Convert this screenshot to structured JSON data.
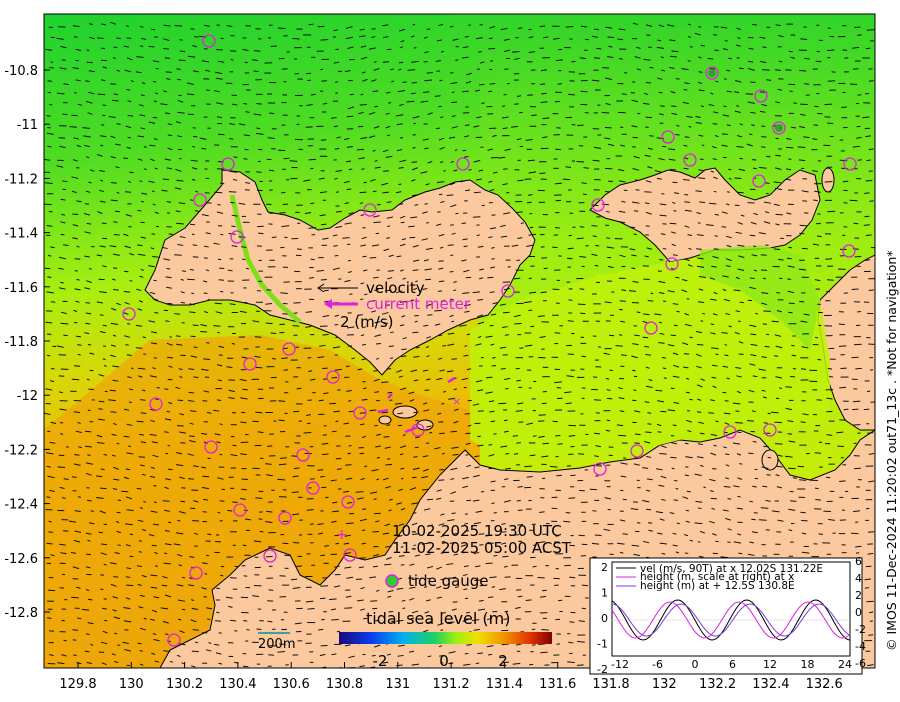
{
  "axes": {
    "y_ticks": [
      "-10.8",
      "-11",
      "-11.2",
      "-11.4",
      "-11.6",
      "-11.8",
      "-12",
      "-12.2",
      "-12.4",
      "-12.6",
      "-12.8"
    ],
    "x_ticks": [
      "129.8",
      "130",
      "130.2",
      "130.4",
      "130.6",
      "130.8",
      "131",
      "131.2",
      "131.4",
      "131.6",
      "131.8",
      "132",
      "132.2",
      "132.4",
      "132.6"
    ]
  },
  "legend": {
    "velocity": "velocity",
    "current_meter": "current meter",
    "scale": "2 (m/s)"
  },
  "time": {
    "utc": "10-02-2025 19:30 UTC",
    "acst": "11-02-2025 05:00 ACST"
  },
  "tide_gauge_label": "tide gauge",
  "colorbar": {
    "title": "tidal sea level (m)",
    "ticks": [
      "-2",
      "0",
      "2"
    ]
  },
  "scale_bar": "200m",
  "inset": {
    "legend": [
      "vel (m/s, 90T) at x 12.02S 131.22E",
      "height (m, scale at right) at x",
      "height (m) at + 12.5S 130.8E"
    ],
    "left_ticks": [
      "2",
      "1",
      "0",
      "-1",
      "-2"
    ],
    "right_ticks": [
      "6",
      "4",
      "2",
      "0",
      "-2",
      "-4",
      "-6"
    ],
    "x_ticks": [
      "-12",
      "-6",
      "0",
      "6",
      "12",
      "18",
      "24"
    ]
  },
  "side_label": "© IMOS 11-Dec-2024 11:20:02 out71_13c . *Not for navigation*",
  "colors": {
    "land": "#fbc99d",
    "sea_north": "#22d22a",
    "sea_mid": "#b8f20c",
    "sea_south": "#f2ae05",
    "marker": "#e020e0",
    "vel_line": "#000000",
    "height_x_line": "#e020e0",
    "height_plus_line": "#8a2be2"
  }
}
